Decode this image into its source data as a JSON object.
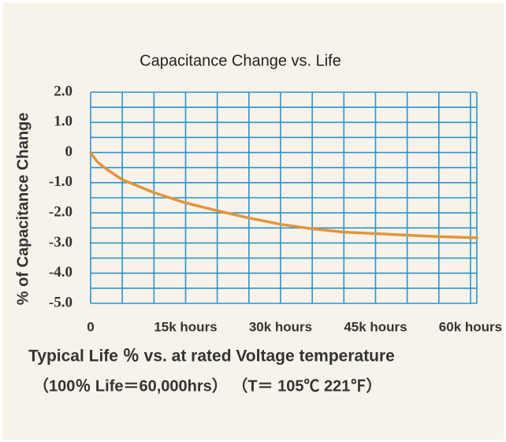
{
  "chart_data": {
    "type": "line",
    "title": "Capacitance Change vs. Life",
    "y_label": "% of Capacitance Change",
    "caption": [
      "Typical Life ％ vs. at rated Voltage temperature",
      "（100％ Life＝60,000hrs） （T＝ 105℃ 221℉）"
    ],
    "x": [
      0,
      1000,
      2500,
      5000,
      10000,
      15000,
      20000,
      25000,
      30000,
      35000,
      40000,
      45000,
      50000,
      55000,
      60000,
      61000
    ],
    "series": [
      {
        "name": "Capacitance Change",
        "color": "#e2953c",
        "values": [
          0,
          -0.3,
          -0.55,
          -0.9,
          -1.33,
          -1.67,
          -1.93,
          -2.17,
          -2.38,
          -2.53,
          -2.64,
          -2.69,
          -2.74,
          -2.79,
          -2.82,
          -2.83
        ]
      }
    ],
    "xlim": [
      0,
      61000
    ],
    "ylim": [
      -5,
      2
    ],
    "xticks": [
      0,
      {
        "value": 15000,
        "label": "15k hours"
      },
      {
        "value": 30000,
        "label": "30k hours"
      },
      {
        "value": 45000,
        "label": "45k hours"
      },
      {
        "value": 60000,
        "label": "60k hours"
      }
    ],
    "yticks": [
      {
        "value": 2,
        "label": "2.0"
      },
      {
        "value": 1,
        "label": "1.0"
      },
      0,
      {
        "value": -1,
        "label": "-1.0"
      },
      {
        "value": -2,
        "label": "-2.0"
      },
      {
        "value": -3,
        "label": "-3.0"
      },
      {
        "value": -4,
        "label": "-4.0"
      },
      {
        "value": -5,
        "label": "-5.0"
      }
    ],
    "xgrid": [
      0,
      5000,
      10000,
      15000,
      20000,
      25000,
      30000,
      35000,
      40000,
      45000,
      50000,
      55000,
      60000,
      61000
    ],
    "ygrid": [
      2,
      1.5,
      1,
      0.5,
      0,
      -0.5,
      -1,
      -1.5,
      -2,
      -2.5,
      -3,
      -3.5,
      -4,
      -4.5,
      -5
    ],
    "grid_color": "#2a93cc"
  }
}
